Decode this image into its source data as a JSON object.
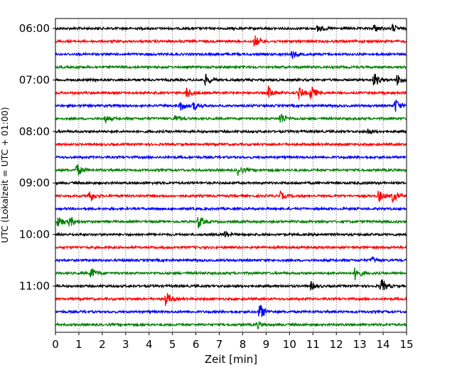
{
  "chart_data": {
    "type": "line",
    "title": "",
    "xlabel": "Zeit  [min]",
    "ylabel": "UTC (Lokalzeit = UTC + 01:00)",
    "xlim": [
      0,
      15
    ],
    "xticks": [
      0,
      1,
      2,
      3,
      4,
      5,
      6,
      7,
      8,
      9,
      10,
      11,
      12,
      13,
      14,
      15
    ],
    "yticks": [
      "06:00",
      "07:00",
      "08:00",
      "09:00",
      "10:00",
      "11:00"
    ],
    "grid": "vertical dotted lines at each minute",
    "trace_interval_minutes": 15,
    "trace_colors": [
      "#000000",
      "#ff0000",
      "#0000ff",
      "#008000"
    ],
    "traces": [
      {
        "start": "06:00",
        "color": "#000000",
        "events": [
          {
            "t": 11.2,
            "amp": 0.6
          },
          {
            "t": 13.6,
            "amp": 0.5
          },
          {
            "t": 14.4,
            "amp": 0.5
          }
        ]
      },
      {
        "start": "06:15",
        "color": "#ff0000",
        "events": [
          {
            "t": 8.5,
            "amp": 0.8
          }
        ]
      },
      {
        "start": "06:30",
        "color": "#0000ff",
        "events": [
          {
            "t": 10.1,
            "amp": 0.6
          }
        ]
      },
      {
        "start": "06:45",
        "color": "#008000",
        "events": []
      },
      {
        "start": "07:00",
        "color": "#000000",
        "events": [
          {
            "t": 6.4,
            "amp": 0.7
          },
          {
            "t": 13.6,
            "amp": 1.0
          },
          {
            "t": 14.6,
            "amp": 0.8
          }
        ]
      },
      {
        "start": "07:15",
        "color": "#ff0000",
        "events": [
          {
            "t": 5.6,
            "amp": 0.8
          },
          {
            "t": 9.1,
            "amp": 0.8
          },
          {
            "t": 10.4,
            "amp": 0.8
          },
          {
            "t": 10.9,
            "amp": 1.0
          }
        ]
      },
      {
        "start": "07:30",
        "color": "#0000ff",
        "events": [
          {
            "t": 5.3,
            "amp": 0.7
          },
          {
            "t": 5.9,
            "amp": 0.6
          },
          {
            "t": 14.5,
            "amp": 1.0
          }
        ]
      },
      {
        "start": "07:45",
        "color": "#008000",
        "events": [
          {
            "t": 2.1,
            "amp": 0.5
          },
          {
            "t": 5.1,
            "amp": 0.4
          },
          {
            "t": 9.6,
            "amp": 0.9
          }
        ]
      },
      {
        "start": "08:00",
        "color": "#000000",
        "events": [
          {
            "t": 13.3,
            "amp": 0.4
          }
        ]
      },
      {
        "start": "08:15",
        "color": "#ff0000",
        "events": []
      },
      {
        "start": "08:30",
        "color": "#0000ff",
        "events": []
      },
      {
        "start": "08:45",
        "color": "#008000",
        "events": [
          {
            "t": 0.9,
            "amp": 0.9
          },
          {
            "t": 7.8,
            "amp": 0.6
          }
        ]
      },
      {
        "start": "09:00",
        "color": "#000000",
        "events": []
      },
      {
        "start": "09:15",
        "color": "#ff0000",
        "events": [
          {
            "t": 1.4,
            "amp": 1.0
          },
          {
            "t": 9.6,
            "amp": 0.5
          },
          {
            "t": 13.8,
            "amp": 0.8
          },
          {
            "t": 14.4,
            "amp": 0.8
          }
        ]
      },
      {
        "start": "09:30",
        "color": "#0000ff",
        "events": []
      },
      {
        "start": "09:45",
        "color": "#008000",
        "events": [
          {
            "t": 0.1,
            "amp": 0.8
          },
          {
            "t": 0.6,
            "amp": 0.7
          },
          {
            "t": 6.1,
            "amp": 0.9
          }
        ]
      },
      {
        "start": "10:00",
        "color": "#000000",
        "events": [
          {
            "t": 7.2,
            "amp": 0.5
          }
        ]
      },
      {
        "start": "10:15",
        "color": "#ff0000",
        "events": []
      },
      {
        "start": "10:30",
        "color": "#0000ff",
        "events": [
          {
            "t": 13.5,
            "amp": 0.4
          }
        ]
      },
      {
        "start": "10:45",
        "color": "#008000",
        "events": [
          {
            "t": 1.5,
            "amp": 0.8
          },
          {
            "t": 12.8,
            "amp": 0.9
          }
        ]
      },
      {
        "start": "11:00",
        "color": "#000000",
        "events": [
          {
            "t": 10.9,
            "amp": 0.5
          },
          {
            "t": 13.9,
            "amp": 1.0
          }
        ]
      },
      {
        "start": "11:15",
        "color": "#ff0000",
        "events": [
          {
            "t": 4.7,
            "amp": 1.0
          }
        ]
      },
      {
        "start": "11:30",
        "color": "#0000ff",
        "events": [
          {
            "t": 8.7,
            "amp": 1.2
          }
        ]
      },
      {
        "start": "11:45",
        "color": "#008000",
        "events": [
          {
            "t": 8.6,
            "amp": 0.5
          }
        ]
      }
    ]
  }
}
